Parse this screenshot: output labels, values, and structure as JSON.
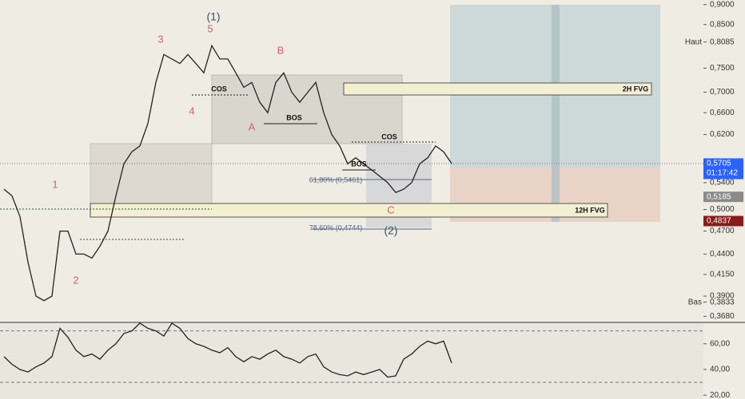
{
  "chart_data": [
    {
      "type": "line",
      "color": "#222222",
      "log_scale": true,
      "values": [
        0.53,
        0.52,
        0.49,
        0.43,
        0.39,
        0.385,
        0.39,
        0.47,
        0.47,
        0.44,
        0.44,
        0.435,
        0.45,
        0.47,
        0.52,
        0.57,
        0.59,
        0.6,
        0.64,
        0.72,
        0.78,
        0.77,
        0.76,
        0.78,
        0.76,
        0.74,
        0.8,
        0.77,
        0.77,
        0.74,
        0.71,
        0.72,
        0.68,
        0.66,
        0.72,
        0.74,
        0.7,
        0.68,
        0.7,
        0.72,
        0.66,
        0.62,
        0.6,
        0.57,
        0.58,
        0.57,
        0.56,
        0.55,
        0.54,
        0.525,
        0.53,
        0.54,
        0.57,
        0.58,
        0.6,
        0.59,
        0.5705
      ],
      "ylim": [
        0.365,
        0.912
      ],
      "yticks": [
        {
          "value": 0.9,
          "label": "0,9000"
        },
        {
          "value": 0.85,
          "label": "0,8500"
        },
        {
          "value": 0.75,
          "label": "0,7500"
        },
        {
          "value": 0.7,
          "label": "0,7000"
        },
        {
          "value": 0.66,
          "label": "0,6600"
        },
        {
          "value": 0.62,
          "label": "0,6200"
        },
        {
          "value": 0.54,
          "label": "0,5400"
        },
        {
          "value": 0.5,
          "label": "0,5000"
        },
        {
          "value": 0.47,
          "label": "0,4700"
        },
        {
          "value": 0.44,
          "label": "0,4400"
        },
        {
          "value": 0.415,
          "label": "0,4150"
        },
        {
          "value": 0.39,
          "label": "0,3900"
        },
        {
          "value": 0.368,
          "label": "0,3680"
        }
      ],
      "price_labels": [
        {
          "value": 0.5705,
          "label": "0,5705",
          "color": "#2962ff"
        },
        {
          "value": 0.5185,
          "label": "0,5185",
          "color": "#8a8a8a"
        },
        {
          "value": 0.4837,
          "label": "0,4837",
          "color": "#8b1a1a"
        }
      ],
      "countdown": "01:17:42",
      "high": {
        "name": "Haut",
        "value": 0.8085,
        "label": "0,8085"
      },
      "low": {
        "name": "Bas",
        "value": 0.3833,
        "label": "0,3833"
      },
      "annotations": [
        "(1)",
        "5",
        "3",
        "B",
        "4",
        "A",
        "1",
        "2",
        "C",
        "(2)",
        "COS",
        "BOS",
        "BOS",
        "COS",
        "2H FVG",
        "12H FVG",
        "61,80% (0,5461)",
        "78,60% (0,4744)"
      ]
    },
    {
      "type": "line",
      "color": "#222222",
      "values": [
        50,
        44,
        40,
        38,
        42,
        45,
        50,
        72,
        65,
        55,
        50,
        52,
        48,
        55,
        60,
        68,
        70,
        76,
        72,
        70,
        66,
        76,
        72,
        64,
        60,
        58,
        55,
        53,
        57,
        50,
        46,
        50,
        48,
        52,
        55,
        50,
        48,
        45,
        50,
        52,
        42,
        38,
        36,
        35,
        38,
        36,
        38,
        40,
        34,
        35,
        48,
        52,
        58,
        62,
        60,
        62,
        45
      ],
      "ylim": [
        17,
        76
      ],
      "yticks": [
        {
          "value": 60,
          "label": "60,00"
        },
        {
          "value": 40,
          "label": "40,00"
        },
        {
          "value": 20,
          "label": "20,00"
        }
      ],
      "levels": [
        70,
        30
      ]
    }
  ]
}
